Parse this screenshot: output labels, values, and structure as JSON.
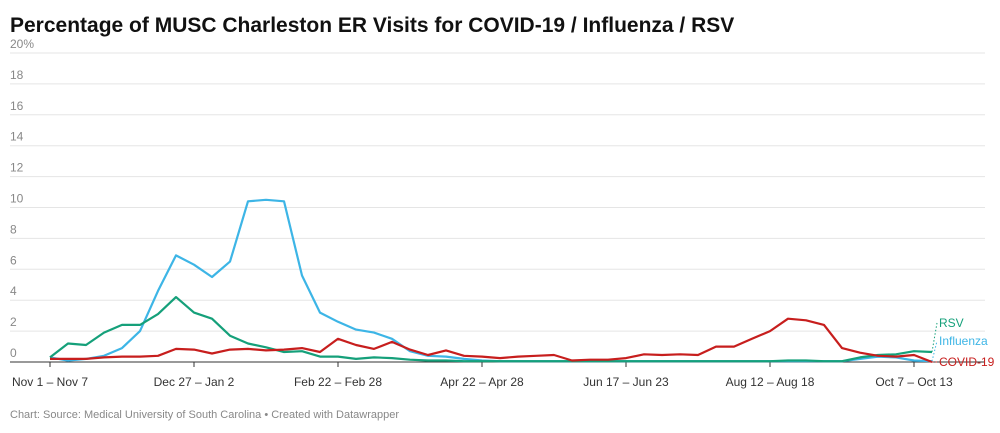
{
  "chart_data": {
    "type": "line",
    "title": "Percentage of MUSC Charleston ER Visits for COVID-19 / Influenza / RSV",
    "footer": "Chart: Source: Medical University of South Carolina • Created with Datawrapper",
    "categories": [
      "Nov 1 – Nov 7",
      null,
      null,
      null,
      null,
      null,
      null,
      null,
      "Dec 27 – Jan 2",
      null,
      null,
      null,
      null,
      null,
      null,
      null,
      "Feb 22 – Feb 28",
      null,
      null,
      null,
      null,
      null,
      null,
      null,
      "Apr 22 – Apr 28",
      null,
      null,
      null,
      null,
      null,
      null,
      null,
      "Jun 17 – Jun 23",
      null,
      null,
      null,
      null,
      null,
      null,
      null,
      "Aug 12 – Aug 18",
      null,
      null,
      null,
      null,
      null,
      null,
      null,
      "Oct 7 – Oct 13",
      null
    ],
    "ylim": [
      0,
      20
    ],
    "yticks": [
      0,
      2,
      4,
      6,
      8,
      10,
      12,
      14,
      16,
      18,
      {
        "value": 20,
        "label": "20%"
      }
    ],
    "grid": true,
    "series": [
      {
        "name": "Influenza",
        "color": "#3db5e6",
        "values": [
          0.3,
          0.1,
          0.2,
          0.4,
          0.9,
          2.0,
          4.6,
          6.9,
          6.3,
          5.5,
          6.5,
          10.4,
          10.5,
          10.4,
          5.6,
          3.2,
          2.6,
          2.1,
          1.9,
          1.5,
          0.7,
          0.4,
          0.35,
          0.2,
          0.1,
          0.05,
          0.05,
          0.05,
          0.05,
          0.05,
          0.05,
          0.05,
          0.05,
          0.05,
          0.05,
          0.05,
          0.05,
          0.05,
          0.05,
          0.05,
          0.05,
          0.05,
          0.05,
          0.05,
          0.05,
          0.2,
          0.35,
          0.3,
          0.1,
          0.05
        ]
      },
      {
        "name": "RSV",
        "color": "#15a07a",
        "values": [
          0.3,
          1.2,
          1.1,
          1.9,
          2.4,
          2.4,
          3.1,
          4.2,
          3.2,
          2.8,
          1.7,
          1.2,
          0.95,
          0.65,
          0.7,
          0.35,
          0.35,
          0.2,
          0.3,
          0.25,
          0.15,
          0.1,
          0.1,
          0.05,
          0.05,
          0.05,
          0.05,
          0.05,
          0.05,
          0.05,
          0.05,
          0.05,
          0.05,
          0.05,
          0.05,
          0.05,
          0.05,
          0.05,
          0.05,
          0.05,
          0.05,
          0.1,
          0.1,
          0.05,
          0.05,
          0.3,
          0.45,
          0.5,
          0.7,
          0.65
        ]
      },
      {
        "name": "COVID-19",
        "color": "#c71e1d",
        "values": [
          0.2,
          0.2,
          0.2,
          0.3,
          0.35,
          0.35,
          0.4,
          0.85,
          0.8,
          0.55,
          0.8,
          0.85,
          0.75,
          0.8,
          0.9,
          0.65,
          1.5,
          1.1,
          0.85,
          1.3,
          0.8,
          0.45,
          0.75,
          0.4,
          0.35,
          0.25,
          0.35,
          0.4,
          0.45,
          0.1,
          0.15,
          0.15,
          0.25,
          0.5,
          0.45,
          0.5,
          0.45,
          1.0,
          1.0,
          1.5,
          2.0,
          2.8,
          2.7,
          2.4,
          0.9,
          0.6,
          0.4,
          0.35,
          0.45,
          0.0
        ]
      }
    ]
  }
}
